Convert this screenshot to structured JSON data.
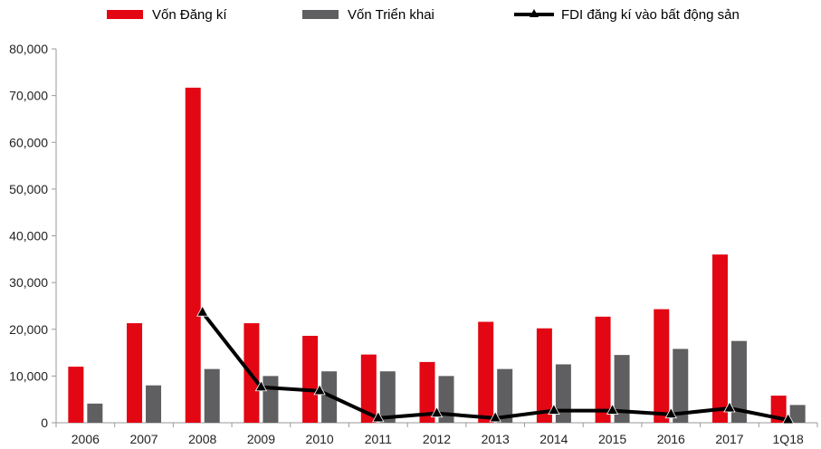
{
  "chart_data": {
    "type": "bar",
    "categories": [
      "2006",
      "2007",
      "2008",
      "2009",
      "2010",
      "2011",
      "2012",
      "2013",
      "2014",
      "2015",
      "2016",
      "2017",
      "1Q18"
    ],
    "series": [
      {
        "name": "Vốn Đăng kí",
        "kind": "bar",
        "color": "#e30613",
        "values": [
          12000,
          21300,
          71700,
          21300,
          18600,
          14600,
          13000,
          21600,
          20200,
          22700,
          24300,
          36000,
          5800
        ]
      },
      {
        "name": "Vốn Triển khai",
        "kind": "bar",
        "color": "#5f5f61",
        "values": [
          4100,
          8000,
          11500,
          10000,
          11000,
          11000,
          10000,
          11500,
          12500,
          14500,
          15800,
          17500,
          3800
        ]
      },
      {
        "name": "FDI đăng kí vào bất động sản",
        "kind": "line",
        "marker": "triangle",
        "color": "#000000",
        "values": [
          null,
          null,
          23600,
          7600,
          6800,
          1000,
          2000,
          1000,
          2600,
          2600,
          1800,
          3100,
          600
        ]
      }
    ],
    "yticks": [
      "0",
      "10,000",
      "20,000",
      "30,000",
      "40,000",
      "50,000",
      "60,000",
      "70,000",
      "80,000"
    ],
    "ylim": [
      0,
      80000
    ],
    "grid": false,
    "legend_position": "top"
  }
}
